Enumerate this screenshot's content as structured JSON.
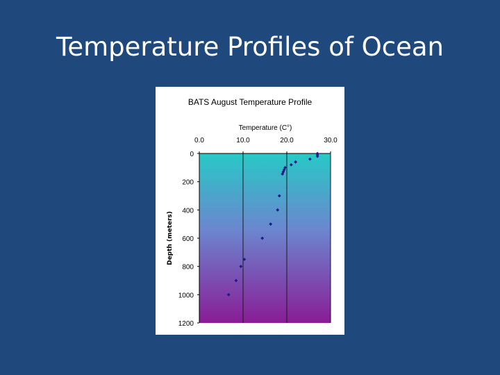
{
  "slide": {
    "title": "Temperature Profiles of Ocean"
  },
  "chart_data": {
    "type": "scatter",
    "title": "BATS August Temperature Profile",
    "xlabel": "Temperature (C°)",
    "ylabel": "Depth (meters)",
    "x_axis_position": "top",
    "y_axis_inverted": true,
    "xlim": [
      0,
      30
    ],
    "ylim": [
      0,
      1200
    ],
    "x_ticks": [
      0,
      10,
      20,
      30
    ],
    "x_tick_labels": [
      "0.0",
      "10.0",
      "20.0",
      "30.0"
    ],
    "y_ticks": [
      0,
      200,
      400,
      600,
      800,
      1000,
      1200
    ],
    "y_tick_labels": [
      "0",
      "200",
      "400",
      "600",
      "800",
      "1000",
      "1200"
    ],
    "gridlines": "vertical",
    "plot_background": "gradient teal to purple",
    "marker_color": "#1a1a8c",
    "points": [
      {
        "x": 27.0,
        "y": 0
      },
      {
        "x": 27.0,
        "y": 10
      },
      {
        "x": 27.0,
        "y": 20
      },
      {
        "x": 25.3,
        "y": 40
      },
      {
        "x": 22.0,
        "y": 60
      },
      {
        "x": 21.0,
        "y": 80
      },
      {
        "x": 19.6,
        "y": 100
      },
      {
        "x": 19.4,
        "y": 115
      },
      {
        "x": 19.2,
        "y": 130
      },
      {
        "x": 19.0,
        "y": 145
      },
      {
        "x": 18.3,
        "y": 300
      },
      {
        "x": 17.9,
        "y": 400
      },
      {
        "x": 16.3,
        "y": 500
      },
      {
        "x": 14.4,
        "y": 600
      },
      {
        "x": 10.3,
        "y": 750
      },
      {
        "x": 9.5,
        "y": 800
      },
      {
        "x": 8.4,
        "y": 900
      },
      {
        "x": 6.7,
        "y": 1000
      }
    ]
  }
}
